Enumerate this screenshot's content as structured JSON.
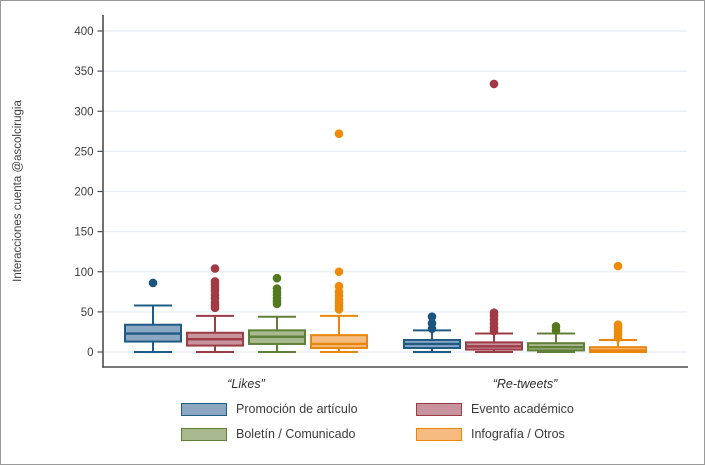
{
  "chart_data": {
    "type": "boxplot",
    "title": "",
    "ylabel": "Interacciones cuenta @ascolcirugia",
    "xlabel": "",
    "ylim": [
      0,
      400
    ],
    "yticks": [
      0,
      50,
      100,
      150,
      200,
      250,
      300,
      350,
      400
    ],
    "grid": true,
    "legend_position": "bottom",
    "groups": [
      "“Likes”",
      "“Re-tweets”"
    ],
    "series": [
      {
        "name": "Promoción de artículo",
        "fill": "#8ba7c2",
        "stroke": "#1f5c85",
        "dot": "#1b547c",
        "boxes": [
          {
            "group": "Likes",
            "whislo": 0,
            "q1": 13,
            "med": 23,
            "q3": 34,
            "whishi": 58,
            "outliers": [
              86
            ]
          },
          {
            "group": "Re-tweets",
            "whislo": 0,
            "q1": 5,
            "med": 10,
            "q3": 15,
            "whishi": 27,
            "outliers": [
              29,
              36,
              44
            ]
          }
        ]
      },
      {
        "name": "Evento académico",
        "fill": "#c7939c",
        "stroke": "#9c3c47",
        "dot": "#a23a45",
        "boxes": [
          {
            "group": "Likes",
            "whislo": 0,
            "q1": 8,
            "med": 16,
            "q3": 24,
            "whishi": 45,
            "outliers": [
              55,
              58,
              62,
              67,
              71,
              76,
              80,
              84,
              88,
              104
            ]
          },
          {
            "group": "Re-tweets",
            "whislo": 0,
            "q1": 3,
            "med": 7,
            "q3": 12,
            "whishi": 23,
            "outliers": [
              26,
              30,
              35,
              40,
              45,
              49,
              334
            ]
          }
        ]
      },
      {
        "name": "Boletín / Comunicado",
        "fill": "#a9b98f",
        "stroke": "#60803a",
        "dot": "#53791f",
        "boxes": [
          {
            "group": "Likes",
            "whislo": 0,
            "q1": 10,
            "med": 19,
            "q3": 27,
            "whishi": 44,
            "outliers": [
              60,
              63,
              67,
              71,
              75,
              79,
              92
            ]
          },
          {
            "group": "Re-tweets",
            "whislo": 0,
            "q1": 2,
            "med": 6,
            "q3": 11,
            "whishi": 23,
            "outliers": [
              27,
              32
            ]
          }
        ]
      },
      {
        "name": "Infografía / Otros",
        "fill": "#f5bb80",
        "stroke": "#e8860d",
        "dot": "#ee8a0a",
        "boxes": [
          {
            "group": "Likes",
            "whislo": 0,
            "q1": 5,
            "med": 10,
            "q3": 21,
            "whishi": 45,
            "outliers": [
              53,
              57,
              61,
              65,
              70,
              75,
              82,
              100,
              272
            ]
          },
          {
            "group": "Re-tweets",
            "whislo": 0,
            "q1": 0,
            "med": 2,
            "q3": 6,
            "whishi": 15,
            "outliers": [
              18,
              22,
              26,
              30,
              34,
              107
            ]
          }
        ]
      }
    ],
    "colors": {
      "grid": "#e7eef3",
      "axis": "#4d4d4d",
      "tick_text": "#3d3d3d"
    }
  }
}
